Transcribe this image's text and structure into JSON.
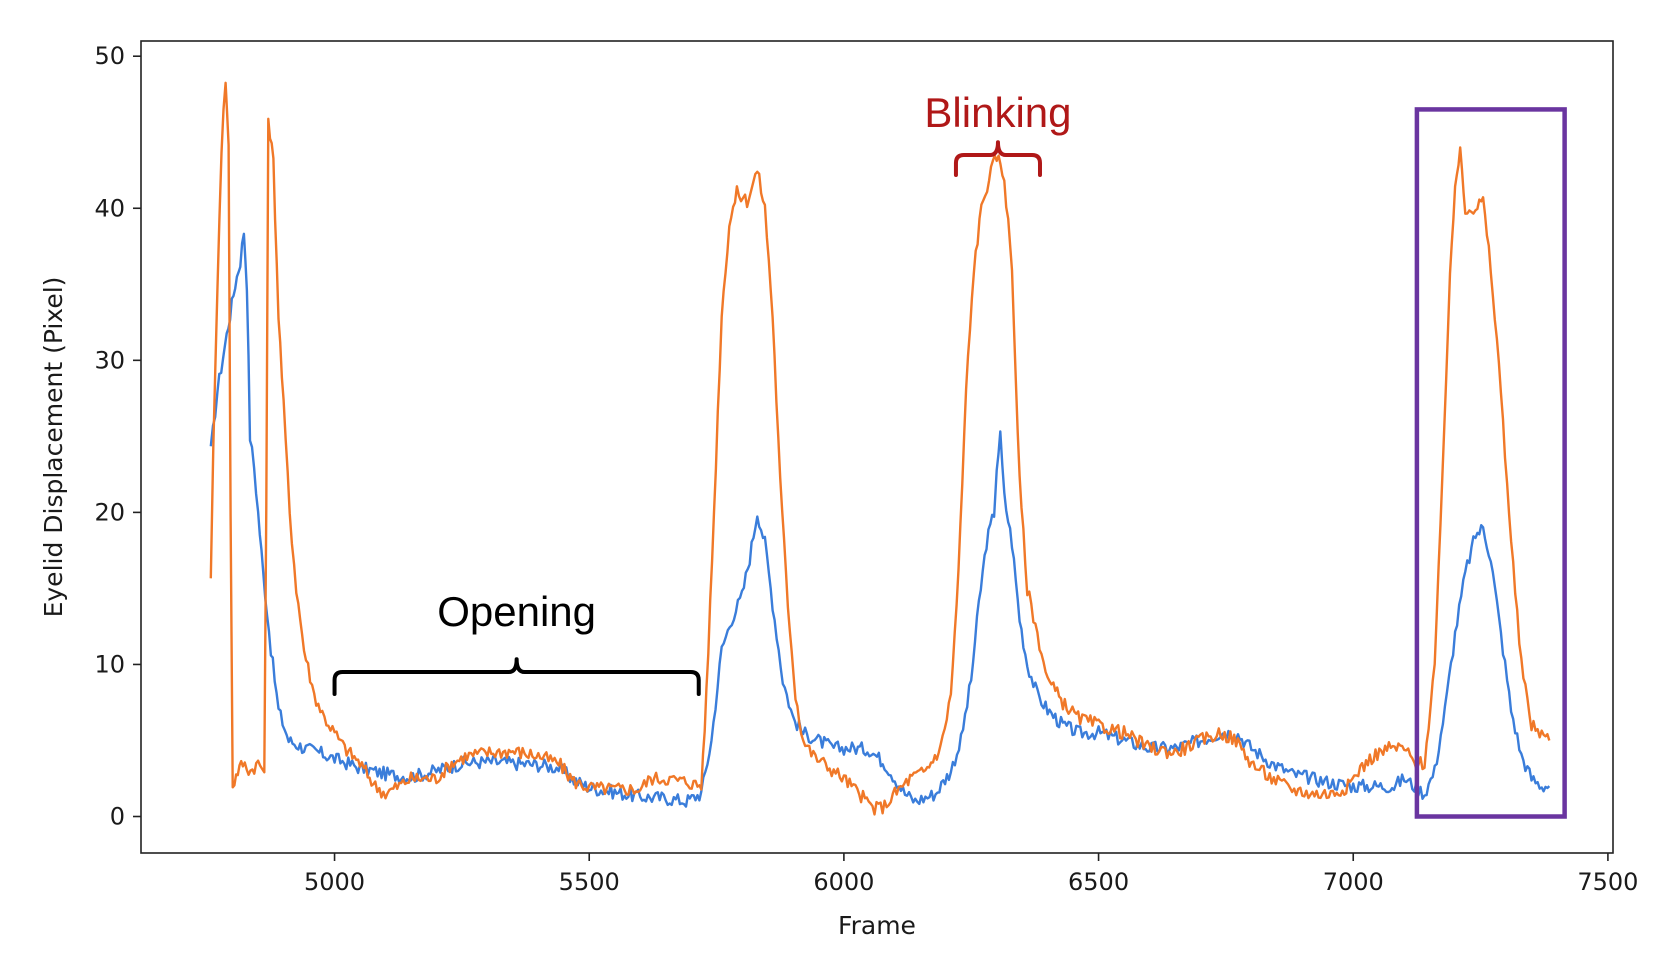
{
  "chart_data": {
    "type": "line",
    "title": "",
    "xlabel": "Frame",
    "ylabel": "Eyelid Displacement (Pixel)",
    "xlim": [
      4620,
      7510
    ],
    "ylim": [
      -2.4,
      51
    ],
    "xticks": [
      5000,
      5500,
      6000,
      6500,
      7000,
      7500
    ],
    "yticks": [
      0,
      10,
      20,
      30,
      40,
      50
    ],
    "grid": false,
    "legend": "none",
    "series": [
      {
        "color": "#3a7dda",
        "points": [
          [
            4757,
            24
          ],
          [
            4770,
            28
          ],
          [
            4785,
            31
          ],
          [
            4795,
            33
          ],
          [
            4805,
            35
          ],
          [
            4815,
            36.5
          ],
          [
            4822,
            38.5
          ],
          [
            4828,
            35
          ],
          [
            4834,
            25
          ],
          [
            4842,
            23
          ],
          [
            4850,
            20
          ],
          [
            4860,
            16
          ],
          [
            4875,
            11
          ],
          [
            4890,
            7
          ],
          [
            4910,
            5
          ],
          [
            4940,
            4.5
          ],
          [
            4970,
            4.2
          ],
          [
            5000,
            3.8
          ],
          [
            5050,
            3.2
          ],
          [
            5100,
            2.8
          ],
          [
            5150,
            2.6
          ],
          [
            5200,
            3
          ],
          [
            5250,
            3.5
          ],
          [
            5300,
            3.6
          ],
          [
            5350,
            3.5
          ],
          [
            5400,
            3.4
          ],
          [
            5440,
            3.2
          ],
          [
            5470,
            2.4
          ],
          [
            5500,
            1.9
          ],
          [
            5550,
            1.6
          ],
          [
            5600,
            1.3
          ],
          [
            5650,
            1.2
          ],
          [
            5690,
            1
          ],
          [
            5720,
            1.5
          ],
          [
            5740,
            5
          ],
          [
            5760,
            11
          ],
          [
            5780,
            13
          ],
          [
            5800,
            14.5
          ],
          [
            5815,
            17
          ],
          [
            5830,
            20
          ],
          [
            5845,
            18
          ],
          [
            5860,
            14
          ],
          [
            5880,
            9
          ],
          [
            5900,
            6.5
          ],
          [
            5920,
            5.5
          ],
          [
            5950,
            5
          ],
          [
            5980,
            4.5
          ],
          [
            6000,
            4.5
          ],
          [
            6020,
            4.5
          ],
          [
            6050,
            4.4
          ],
          [
            6080,
            3.5
          ],
          [
            6100,
            2.5
          ],
          [
            6120,
            1.5
          ],
          [
            6140,
            1
          ],
          [
            6180,
            1.5
          ],
          [
            6210,
            3
          ],
          [
            6230,
            5
          ],
          [
            6250,
            9
          ],
          [
            6265,
            14
          ],
          [
            6280,
            18
          ],
          [
            6295,
            20
          ],
          [
            6300,
            23
          ],
          [
            6307,
            25
          ],
          [
            6315,
            21
          ],
          [
            6330,
            18
          ],
          [
            6345,
            13
          ],
          [
            6360,
            10
          ],
          [
            6380,
            8
          ],
          [
            6400,
            7
          ],
          [
            6430,
            6
          ],
          [
            6460,
            5.5
          ],
          [
            6500,
            5.5
          ],
          [
            6550,
            5
          ],
          [
            6600,
            4.5
          ],
          [
            6650,
            4.5
          ],
          [
            6700,
            5
          ],
          [
            6740,
            5.5
          ],
          [
            6770,
            5.5
          ],
          [
            6800,
            4.5
          ],
          [
            6840,
            3.5
          ],
          [
            6880,
            2.8
          ],
          [
            6920,
            2.5
          ],
          [
            6960,
            2.2
          ],
          [
            7000,
            2
          ],
          [
            7050,
            2
          ],
          [
            7080,
            2
          ],
          [
            7100,
            2.5
          ],
          [
            7120,
            2
          ],
          [
            7140,
            1.5
          ],
          [
            7160,
            3
          ],
          [
            7180,
            7
          ],
          [
            7200,
            12
          ],
          [
            7220,
            16
          ],
          [
            7240,
            18.5
          ],
          [
            7255,
            19
          ],
          [
            7270,
            17
          ],
          [
            7290,
            12
          ],
          [
            7310,
            7
          ],
          [
            7330,
            4
          ],
          [
            7350,
            2.5
          ],
          [
            7370,
            2
          ],
          [
            7385,
            2
          ]
        ]
      },
      {
        "color": "#f07828",
        "points": [
          [
            4757,
            16
          ],
          [
            4762,
            24
          ],
          [
            4770,
            35
          ],
          [
            4778,
            44
          ],
          [
            4786,
            48.5
          ],
          [
            4792,
            44
          ],
          [
            4796,
            20
          ],
          [
            4800,
            2
          ],
          [
            4810,
            3
          ],
          [
            4820,
            3.5
          ],
          [
            4835,
            3
          ],
          [
            4850,
            3.5
          ],
          [
            4862,
            3
          ],
          [
            4866,
            20
          ],
          [
            4870,
            46
          ],
          [
            4880,
            43
          ],
          [
            4890,
            33
          ],
          [
            4900,
            27
          ],
          [
            4912,
            20
          ],
          [
            4925,
            15
          ],
          [
            4940,
            11
          ],
          [
            4960,
            8
          ],
          [
            4980,
            6.5
          ],
          [
            5000,
            5.5
          ],
          [
            5020,
            4.5
          ],
          [
            5050,
            3.5
          ],
          [
            5080,
            2
          ],
          [
            5100,
            1.5
          ],
          [
            5150,
            2.5
          ],
          [
            5200,
            2.5
          ],
          [
            5230,
            3.5
          ],
          [
            5260,
            4
          ],
          [
            5300,
            4.2
          ],
          [
            5350,
            4.3
          ],
          [
            5400,
            4
          ],
          [
            5440,
            3.5
          ],
          [
            5470,
            2.3
          ],
          [
            5500,
            1.9
          ],
          [
            5550,
            1.8
          ],
          [
            5600,
            1.8
          ],
          [
            5620,
            2.5
          ],
          [
            5650,
            2.5
          ],
          [
            5690,
            2.3
          ],
          [
            5720,
            2
          ],
          [
            5730,
            8
          ],
          [
            5745,
            20
          ],
          [
            5760,
            33
          ],
          [
            5775,
            39
          ],
          [
            5790,
            41
          ],
          [
            5810,
            40.5
          ],
          [
            5830,
            42.5
          ],
          [
            5845,
            40
          ],
          [
            5860,
            33
          ],
          [
            5875,
            22
          ],
          [
            5890,
            14
          ],
          [
            5905,
            8
          ],
          [
            5920,
            5
          ],
          [
            5940,
            4
          ],
          [
            5960,
            3.5
          ],
          [
            5980,
            3
          ],
          [
            6000,
            2.5
          ],
          [
            6030,
            1.5
          ],
          [
            6060,
            0.5
          ],
          [
            6080,
            0.7
          ],
          [
            6100,
            1.5
          ],
          [
            6130,
            2.5
          ],
          [
            6160,
            3
          ],
          [
            6190,
            4.5
          ],
          [
            6210,
            8
          ],
          [
            6225,
            16
          ],
          [
            6240,
            28
          ],
          [
            6255,
            36
          ],
          [
            6270,
            40
          ],
          [
            6285,
            42
          ],
          [
            6300,
            43.5
          ],
          [
            6315,
            42
          ],
          [
            6330,
            36
          ],
          [
            6345,
            22
          ],
          [
            6360,
            15
          ],
          [
            6380,
            12
          ],
          [
            6400,
            9
          ],
          [
            6430,
            7.5
          ],
          [
            6460,
            6.5
          ],
          [
            6500,
            6
          ],
          [
            6550,
            5.5
          ],
          [
            6600,
            4.5
          ],
          [
            6650,
            4.2
          ],
          [
            6700,
            5
          ],
          [
            6740,
            5.5
          ],
          [
            6770,
            5
          ],
          [
            6800,
            3.5
          ],
          [
            6840,
            2.5
          ],
          [
            6880,
            1.8
          ],
          [
            6920,
            1.5
          ],
          [
            6960,
            1.5
          ],
          [
            6990,
            2
          ],
          [
            7010,
            3
          ],
          [
            7040,
            4
          ],
          [
            7070,
            4.5
          ],
          [
            7100,
            4.5
          ],
          [
            7120,
            3.5
          ],
          [
            7140,
            3.5
          ],
          [
            7160,
            10
          ],
          [
            7175,
            22
          ],
          [
            7190,
            36
          ],
          [
            7200,
            41
          ],
          [
            7210,
            44
          ],
          [
            7220,
            40
          ],
          [
            7240,
            40
          ],
          [
            7255,
            40.5
          ],
          [
            7270,
            36
          ],
          [
            7290,
            28
          ],
          [
            7310,
            18
          ],
          [
            7330,
            10
          ],
          [
            7350,
            6
          ],
          [
            7370,
            5.5
          ],
          [
            7385,
            5
          ]
        ]
      }
    ],
    "annotations": {
      "opening": {
        "text": "Opening",
        "x_start": 5000,
        "x_end": 5715,
        "y_bracket": 9.5,
        "color": "#000000"
      },
      "blinking": {
        "text": "Blinking",
        "x_start": 6220,
        "x_end": 6385,
        "y_bracket": 43.5,
        "color": "#b01818"
      },
      "highlight_box": {
        "x_start": 7125,
        "x_end": 7415,
        "y_start": 0,
        "y_end": 46.5,
        "color": "#6a35a0"
      }
    }
  }
}
